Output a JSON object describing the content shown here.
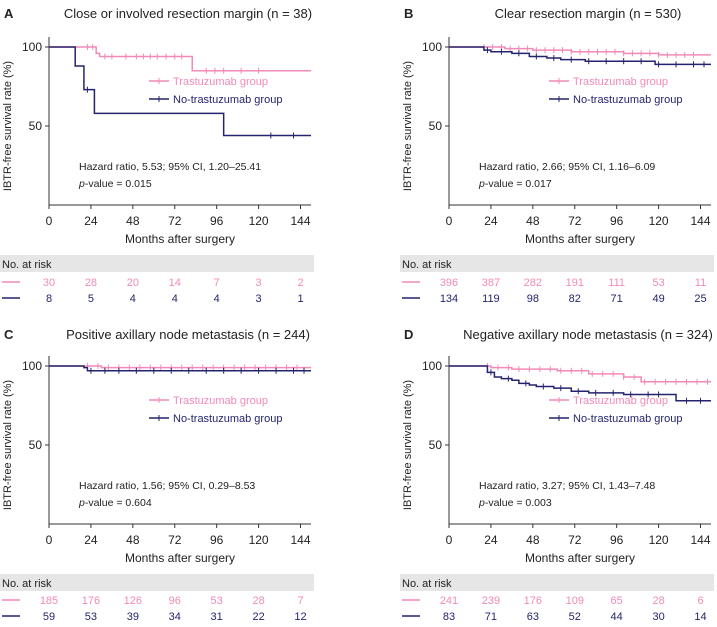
{
  "colors": {
    "trastuzumab": "#f28ab8",
    "no_trastuzumab": "#24246e",
    "axis": "#333333",
    "risk_band": "#e6e6e6",
    "text": "#222222"
  },
  "risk_table": {
    "title": "No. at risk"
  },
  "chart_data": [
    {
      "type": "line",
      "letter": "A",
      "title": "Close or involved resection margin (n = 38)",
      "xlabel": "Months after surgery",
      "ylabel": "IBTR-free survival rate (%)",
      "xlim": [
        0,
        150
      ],
      "ylim": [
        0,
        100
      ],
      "xticks": [
        "0",
        "24",
        "48",
        "72",
        "96",
        "120",
        "144"
      ],
      "yticks": [
        "50",
        "100"
      ],
      "legend": [
        "Trastuzumab group",
        "No-trastuzumab group"
      ],
      "legend_position": "center-right",
      "annotation": {
        "hazard": "Hazard ratio, 5.53; 95% CI, 1.20–25.41",
        "p_label": "p",
        "p_value": "-value = 0.015"
      },
      "series": [
        {
          "name": "Trastuzumab group",
          "steps": [
            [
              0,
              100
            ],
            [
              24,
              100
            ],
            [
              27,
              96
            ],
            [
              29,
              94
            ],
            [
              79,
              94
            ],
            [
              82,
              85
            ],
            [
              150,
              85
            ]
          ],
          "censor": [
            22,
            25,
            32,
            36,
            44,
            50,
            54,
            58,
            62,
            67,
            72,
            76,
            90,
            95,
            100,
            110,
            120
          ]
        },
        {
          "name": "No-trastuzumab group",
          "steps": [
            [
              0,
              100
            ],
            [
              15,
              100
            ],
            [
              15,
              88
            ],
            [
              20,
              88
            ],
            [
              20,
              73
            ],
            [
              26,
              73
            ],
            [
              26,
              58
            ],
            [
              100,
              58
            ],
            [
              100,
              44
            ],
            [
              150,
              44
            ]
          ],
          "censor": [
            22,
            127,
            140
          ]
        }
      ],
      "at_risk": {
        "months": [
          0,
          24,
          48,
          72,
          96,
          120,
          144
        ],
        "trastuzumab": [
          "30",
          "28",
          "20",
          "14",
          "7",
          "3",
          "2"
        ],
        "no_trastuzumab": [
          "8",
          "5",
          "4",
          "4",
          "4",
          "3",
          "1"
        ]
      }
    },
    {
      "type": "line",
      "letter": "B",
      "title": "Clear resection margin (n = 530)",
      "xlabel": "Months after surgery",
      "ylabel": "IBTR-free survival rate (%)",
      "xlim": [
        0,
        150
      ],
      "ylim": [
        0,
        100
      ],
      "xticks": [
        "0",
        "24",
        "48",
        "72",
        "96",
        "120",
        "144"
      ],
      "yticks": [
        "50",
        "100"
      ],
      "legend": [
        "Trastuzumab group",
        "No-trastuzumab group"
      ],
      "legend_position": "center-right",
      "annotation": {
        "hazard": "Hazard ratio, 2.66; 95% CI, 1.16–6.09",
        "p_label": "p",
        "p_value": "-value = 0.017"
      },
      "series": [
        {
          "name": "Trastuzumab group",
          "steps": [
            [
              0,
              100
            ],
            [
              20,
              100
            ],
            [
              32,
              99
            ],
            [
              48,
              98
            ],
            [
              70,
              97
            ],
            [
              100,
              96
            ],
            [
              120,
              95
            ],
            [
              150,
              95
            ]
          ],
          "censor": [
            20,
            25,
            30,
            35,
            40,
            45,
            50,
            55,
            60,
            65,
            70,
            75,
            80,
            85,
            90,
            95,
            100,
            105,
            110,
            115,
            120,
            125,
            130,
            135,
            140
          ]
        },
        {
          "name": "No-trastuzumab group",
          "steps": [
            [
              0,
              100
            ],
            [
              18,
              100
            ],
            [
              20,
              98
            ],
            [
              24,
              97
            ],
            [
              36,
              96
            ],
            [
              46,
              94
            ],
            [
              56,
              93
            ],
            [
              64,
              92
            ],
            [
              74,
              92
            ],
            [
              78,
              91
            ],
            [
              116,
              91
            ],
            [
              118,
              89
            ],
            [
              150,
              89
            ]
          ],
          "censor": [
            22,
            30,
            40,
            50,
            60,
            70,
            80,
            90,
            100,
            110,
            120,
            130,
            140,
            146
          ]
        }
      ],
      "at_risk": {
        "months": [
          0,
          24,
          48,
          72,
          96,
          120,
          144
        ],
        "trastuzumab": [
          "396",
          "387",
          "282",
          "191",
          "111",
          "53",
          "11"
        ],
        "no_trastuzumab": [
          "134",
          "119",
          "98",
          "82",
          "71",
          "49",
          "25"
        ]
      }
    },
    {
      "type": "line",
      "letter": "C",
      "title": "Positive axillary node metastasis (n = 244)",
      "xlabel": "Months after surgery",
      "ylabel": "IBTR-free survival rate (%)",
      "xlim": [
        0,
        150
      ],
      "ylim": [
        0,
        100
      ],
      "xticks": [
        "0",
        "24",
        "48",
        "72",
        "96",
        "120",
        "144"
      ],
      "yticks": [
        "50",
        "100"
      ],
      "legend": [
        "Trastuzumab group",
        "No-trastuzumab group"
      ],
      "legend_position": "center-right",
      "annotation": {
        "hazard": "Hazard ratio, 1.56; 95% CI, 0.29–8.53",
        "p_label": "p",
        "p_value": "-value = 0.604"
      },
      "series": [
        {
          "name": "Trastuzumab group",
          "steps": [
            [
              0,
              100
            ],
            [
              24,
              100
            ],
            [
              30,
              99
            ],
            [
              150,
              99
            ]
          ],
          "censor": [
            22,
            28,
            34,
            40,
            46,
            52,
            58,
            64,
            70,
            76,
            82,
            88,
            94,
            100,
            106,
            112,
            118,
            124,
            130,
            136,
            142
          ]
        },
        {
          "name": "No-trastuzumab group",
          "steps": [
            [
              0,
              100
            ],
            [
              18,
              100
            ],
            [
              20,
              99
            ],
            [
              22,
              97
            ],
            [
              150,
              97
            ]
          ],
          "censor": [
            24,
            32,
            40,
            50,
            60,
            70,
            80,
            90,
            100,
            110,
            120,
            130,
            140,
            146
          ]
        }
      ],
      "at_risk": {
        "months": [
          0,
          24,
          48,
          72,
          96,
          120,
          144
        ],
        "trastuzumab": [
          "185",
          "176",
          "126",
          "96",
          "53",
          "28",
          "7"
        ],
        "no_trastuzumab": [
          "59",
          "53",
          "39",
          "34",
          "31",
          "22",
          "12"
        ]
      }
    },
    {
      "type": "line",
      "letter": "D",
      "title": "Negative axillary node metastasis (n = 324)",
      "xlabel": "Months after surgery",
      "ylabel": "IBTR-free survival rate (%)",
      "xlim": [
        0,
        150
      ],
      "ylim": [
        0,
        100
      ],
      "xticks": [
        "0",
        "24",
        "48",
        "72",
        "96",
        "120",
        "144"
      ],
      "yticks": [
        "50",
        "100"
      ],
      "legend": [
        "Trastuzumab group",
        "No-trastuzumab group"
      ],
      "legend_position": "center-right",
      "annotation": {
        "hazard": "Hazard ratio, 3.27; 95% CI, 1.43–7.48",
        "p_label": "p",
        "p_value": "-value = 0.003"
      },
      "series": [
        {
          "name": "Trastuzumab group",
          "steps": [
            [
              0,
              100
            ],
            [
              20,
              100
            ],
            [
              24,
              99
            ],
            [
              36,
              98
            ],
            [
              48,
              98
            ],
            [
              62,
              97
            ],
            [
              80,
              95
            ],
            [
              100,
              93
            ],
            [
              110,
              90
            ],
            [
              150,
              90
            ]
          ],
          "censor": [
            22,
            28,
            34,
            40,
            46,
            52,
            58,
            64,
            70,
            76,
            82,
            88,
            94,
            100,
            106,
            112,
            118,
            124,
            130,
            136,
            142,
            148
          ]
        },
        {
          "name": "No-trastuzumab group",
          "steps": [
            [
              0,
              100
            ],
            [
              18,
              100
            ],
            [
              22,
              96
            ],
            [
              26,
              93
            ],
            [
              30,
              92
            ],
            [
              36,
              91
            ],
            [
              40,
              89
            ],
            [
              46,
              88
            ],
            [
              50,
              87
            ],
            [
              60,
              86
            ],
            [
              70,
              84
            ],
            [
              80,
              83
            ],
            [
              100,
              82
            ],
            [
              126,
              82
            ],
            [
              130,
              78
            ],
            [
              150,
              78
            ]
          ],
          "censor": [
            24,
            34,
            44,
            54,
            64,
            74,
            84,
            94,
            104,
            114,
            120,
            136,
            144
          ]
        }
      ],
      "at_risk": {
        "months": [
          0,
          24,
          48,
          72,
          96,
          120,
          144
        ],
        "trastuzumab": [
          "241",
          "239",
          "176",
          "109",
          "65",
          "28",
          "6"
        ],
        "no_trastuzumab": [
          "83",
          "71",
          "63",
          "52",
          "44",
          "30",
          "14"
        ]
      }
    }
  ]
}
